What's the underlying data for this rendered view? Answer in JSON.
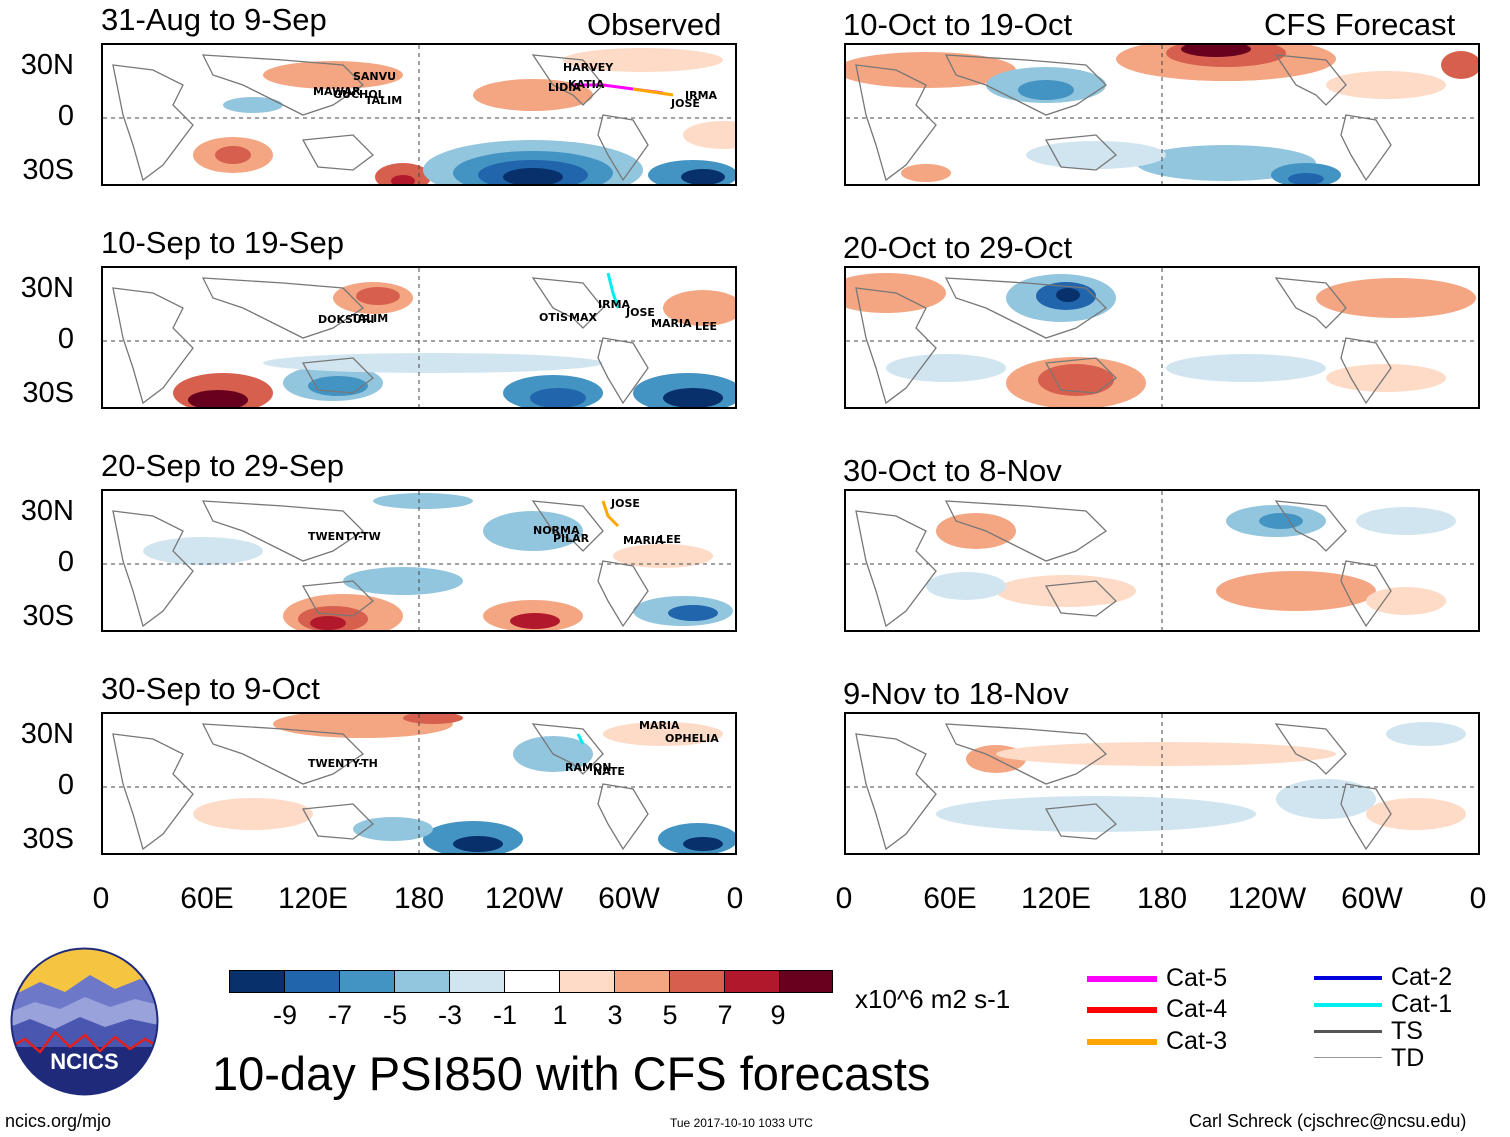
{
  "header": {
    "observed_label": "Observed",
    "forecast_label": "CFS Forecast"
  },
  "panels": [
    {
      "period": "31-Aug to 9-Sep",
      "storms": [
        "HARVEY",
        "SANVU",
        "MAWAR",
        "GUCHOL",
        "TALIM",
        "LIDIA",
        "KATIA",
        "IRMA",
        "JOSE"
      ]
    },
    {
      "period": "10-Sep to 19-Sep",
      "storms": [
        "DOKSURI",
        "TALIM",
        "OTIS",
        "MAX",
        "IRMA",
        "JOSE",
        "MARIA",
        "LEE"
      ]
    },
    {
      "period": "20-Sep to 29-Sep",
      "storms": [
        "TWENTY-TW",
        "NORMA",
        "PILAR",
        "JOSE",
        "MARIA",
        "LEE"
      ]
    },
    {
      "period": "30-Sep to 9-Oct",
      "storms": [
        "TWENTY-TH",
        "RAMON",
        "NATE",
        "MARIA",
        "OPHELIA"
      ]
    },
    {
      "period": "10-Oct to 19-Oct",
      "storms": []
    },
    {
      "period": "20-Oct to 29-Oct",
      "storms": []
    },
    {
      "period": "30-Oct to 8-Nov",
      "storms": []
    },
    {
      "period": "9-Nov to 18-Nov",
      "storms": []
    }
  ],
  "axes": {
    "y_labels": [
      "30N",
      "0",
      "30S"
    ],
    "x_labels": [
      "0",
      "60E",
      "120E",
      "180",
      "120W",
      "60W",
      "0"
    ]
  },
  "colorbar": {
    "colors": [
      "#08306b",
      "#2166ac",
      "#4393c3",
      "#92c5de",
      "#d1e5f0",
      "#ffffff",
      "#fddbc7",
      "#f4a582",
      "#d6604d",
      "#b2182b",
      "#67001f"
    ],
    "labels": [
      "-9",
      "-7",
      "-5",
      "-3",
      "-1",
      "1",
      "3",
      "5",
      "7",
      "9"
    ],
    "units": "x10^6 m2 s-1"
  },
  "legend": [
    {
      "label": "Cat-5",
      "color": "#ff00ff"
    },
    {
      "label": "Cat-4",
      "color": "#ff0000"
    },
    {
      "label": "Cat-3",
      "color": "#ffa500"
    },
    {
      "label": "Cat-2",
      "color": "#0000dd"
    },
    {
      "label": "Cat-1",
      "color": "#00eeee"
    },
    {
      "label": "TS",
      "color": "#555555"
    },
    {
      "label": "TD",
      "color": "#999999"
    }
  ],
  "logo": {
    "text": "NCICS"
  },
  "title": "10-day PSI850 with CFS forecasts",
  "footer": {
    "left": "ncics.org/mjo",
    "center": "Tue 2017-10-10 1033 UTC",
    "right": "Carl Schreck (cjschrec@ncsu.edu)"
  }
}
